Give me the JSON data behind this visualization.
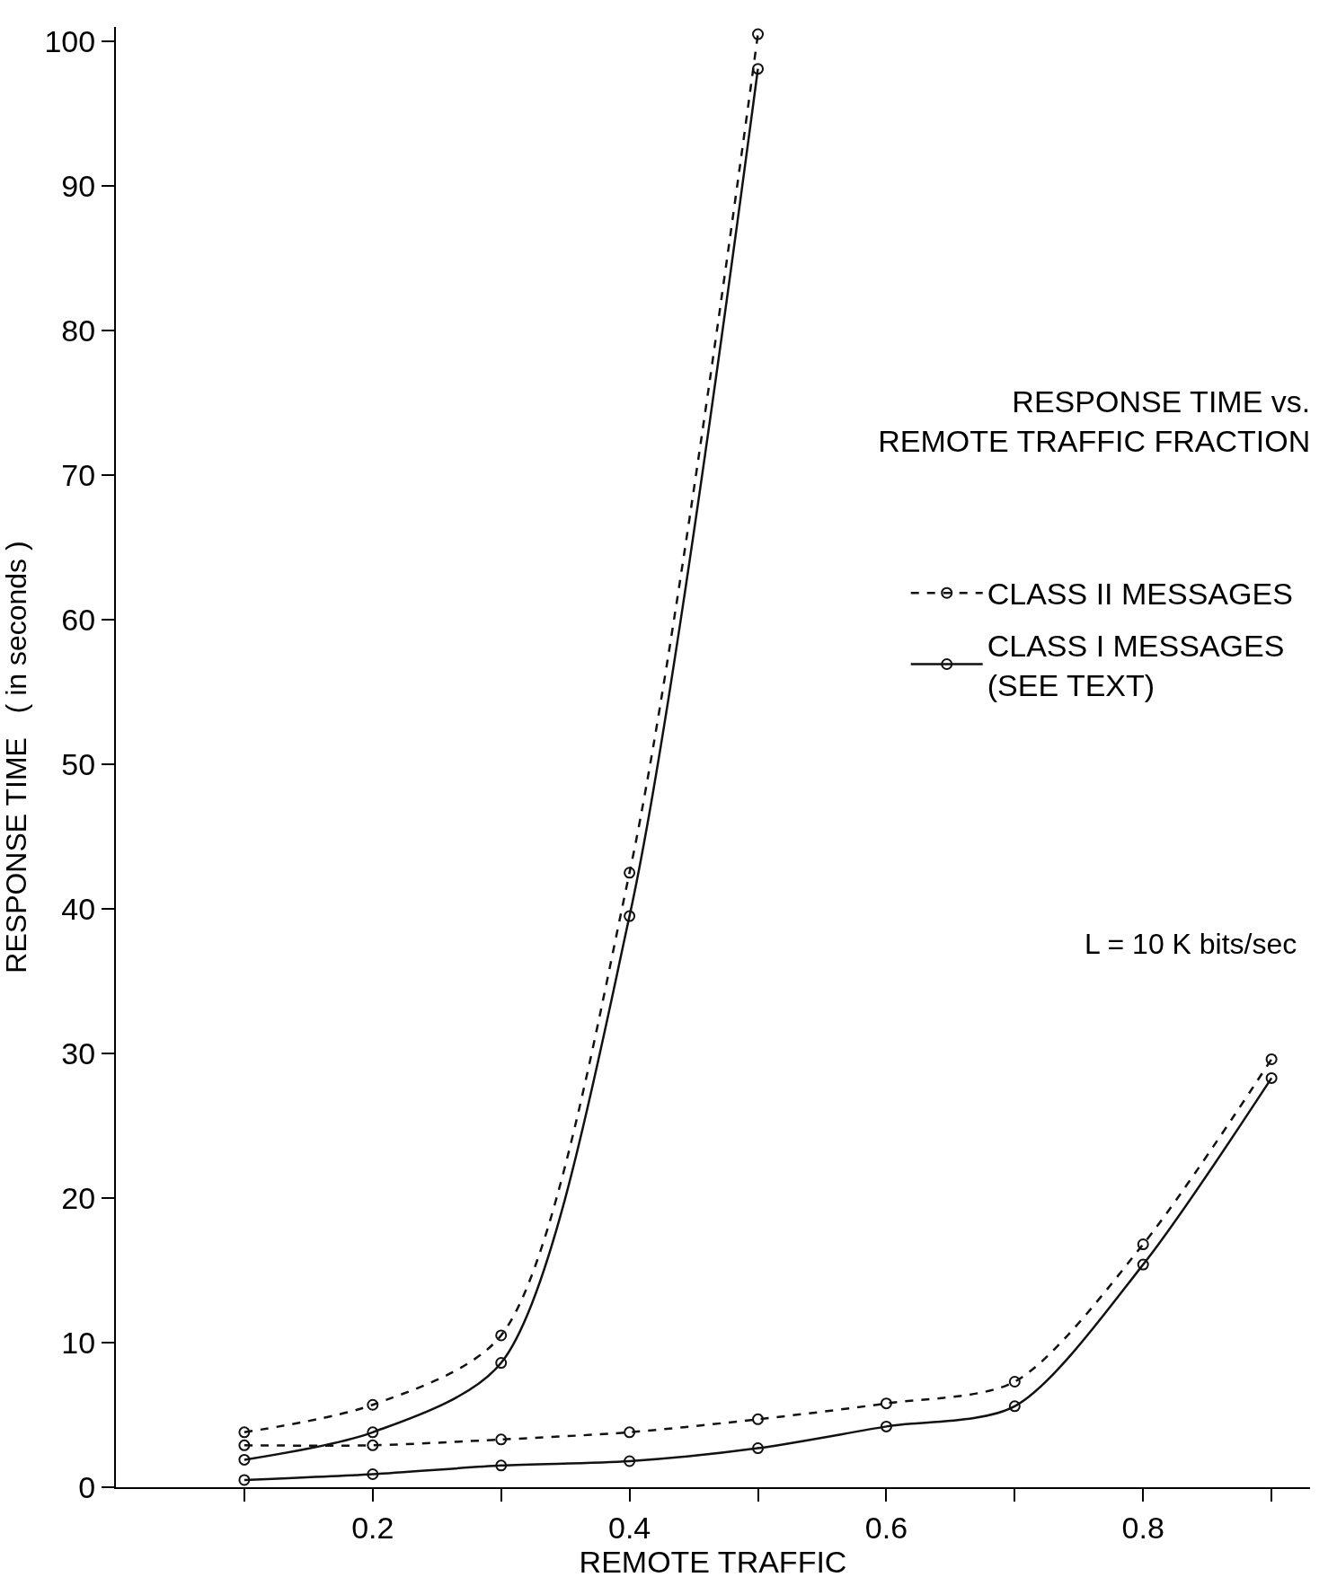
{
  "chart_data": {
    "type": "line",
    "title": "RESPONSE TIME vs.\nREMOTE TRAFFIC FRACTION",
    "xlabel": "REMOTE TRAFFIC",
    "ylabel": "RESPONSE TIME   ( in seconds )",
    "xlim": [
      0,
      0.93
    ],
    "ylim": [
      0,
      101
    ],
    "xticks": [
      {
        "value": 0.1,
        "label": null
      },
      0.2,
      {
        "value": 0.3,
        "label": null
      },
      0.4,
      {
        "value": 0.5,
        "label": null
      },
      0.6,
      {
        "value": 0.7,
        "label": null
      },
      0.8,
      {
        "value": 0.9,
        "label": null
      }
    ],
    "yticks": [
      0,
      10,
      20,
      30,
      40,
      50,
      60,
      70,
      80,
      90,
      100
    ],
    "legend": "right",
    "marker": "circle",
    "annotations": [
      "L = 10 K bits/sec"
    ],
    "series": [
      {
        "name": "CLASS II MESSAGES",
        "color": "#111111",
        "line_style": "dashed",
        "x": [
          0.1,
          0.2,
          0.3,
          0.4,
          0.5
        ],
        "values": [
          3.8,
          5.7,
          10.5,
          42.5,
          100.5
        ]
      },
      {
        "name": "CLASS I MESSAGES\n(SEE TEXT)",
        "color": "#111111",
        "line_style": "solid",
        "x": [
          0.1,
          0.2,
          0.3,
          0.4,
          0.5
        ],
        "values": [
          1.9,
          3.8,
          8.6,
          39.5,
          98.1
        ]
      },
      {
        "color": "#111111",
        "line_style": "dashed",
        "x": [
          0.1,
          0.2,
          0.3,
          0.4,
          0.5,
          0.6,
          0.7,
          0.8,
          0.9
        ],
        "values": [
          2.9,
          2.9,
          3.3,
          3.8,
          4.7,
          5.8,
          7.3,
          16.8,
          29.6
        ]
      },
      {
        "color": "#111111",
        "line_style": "solid",
        "x": [
          0.1,
          0.2,
          0.3,
          0.4,
          0.5,
          0.6,
          0.7,
          0.8,
          0.9
        ],
        "values": [
          0.5,
          0.9,
          1.5,
          1.8,
          2.7,
          4.2,
          5.6,
          15.4,
          28.3
        ]
      }
    ]
  }
}
